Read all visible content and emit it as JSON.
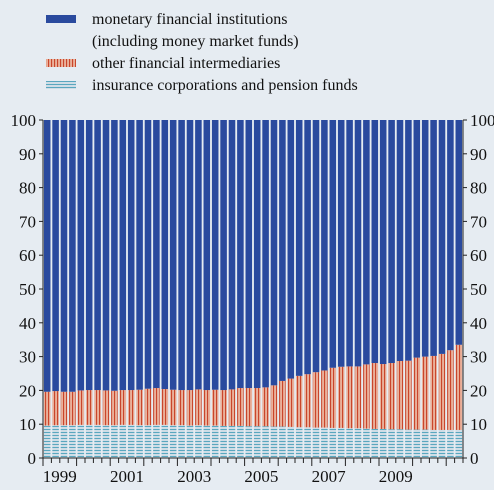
{
  "chart_data": {
    "type": "bar",
    "stacked": true,
    "percent_scale": true,
    "ylim": [
      0,
      100
    ],
    "yticks": [
      0,
      10,
      20,
      30,
      40,
      50,
      60,
      70,
      80,
      90,
      100
    ],
    "right_axis_ticks": true,
    "grid": false,
    "legend_position": "top",
    "x_start_year": 1999,
    "periods_per_year": 4,
    "x_tick_labels": [
      "1999",
      "2001",
      "2003",
      "2005",
      "2007",
      "2009"
    ],
    "x_tick_label_years": [
      1999,
      2001,
      2003,
      2005,
      2007,
      2009
    ],
    "legend": [
      {
        "key": "mfi",
        "lines": [
          "monetary financial institutions",
          "(including money market funds)"
        ]
      },
      {
        "key": "ofi",
        "lines": [
          "other financial intermediaries"
        ]
      },
      {
        "key": "icpf",
        "lines": [
          "insurance corporations and pension funds"
        ]
      }
    ],
    "series": [
      {
        "name": "insurance corporations and pension funds",
        "key": "icpf",
        "color": "#c9d9e3",
        "stripe_color": "#4a9bb5",
        "values": [
          9.6,
          9.7,
          9.7,
          9.7,
          9.8,
          9.8,
          9.8,
          9.7,
          9.7,
          9.8,
          9.8,
          9.7,
          9.7,
          9.8,
          9.8,
          9.7,
          9.7,
          9.6,
          9.7,
          9.6,
          9.6,
          9.5,
          9.5,
          9.5,
          9.4,
          9.4,
          9.4,
          9.3,
          9.3,
          9.2,
          9.1,
          9.1,
          9.0,
          9.0,
          8.9,
          8.9,
          8.8,
          8.8,
          8.7,
          8.6,
          8.6,
          8.5,
          8.5,
          8.4,
          8.4,
          8.4,
          8.3,
          8.3,
          8.3,
          8.3
        ]
      },
      {
        "name": "other financial intermediaries",
        "key": "ofi",
        "color": "#e9a890",
        "stripe_color": "#c9462c",
        "values": [
          10.0,
          10.1,
          9.9,
          9.9,
          10.2,
          10.3,
          10.3,
          10.3,
          10.2,
          10.3,
          10.3,
          10.5,
          10.8,
          10.9,
          10.6,
          10.5,
          10.4,
          10.5,
          10.6,
          10.5,
          10.6,
          10.6,
          10.8,
          11.2,
          11.3,
          11.3,
          11.5,
          12.2,
          13.5,
          14.3,
          15.2,
          15.7,
          16.4,
          16.9,
          17.8,
          18.1,
          18.3,
          18.3,
          19.0,
          19.5,
          19.2,
          19.6,
          20.2,
          20.4,
          21.3,
          21.6,
          21.9,
          22.5,
          23.6,
          25.2
        ]
      },
      {
        "name": "monetary financial institutions (including money market funds)",
        "key": "mfi",
        "color": "#2a4a9e",
        "values": [
          80.4,
          80.2,
          80.4,
          80.4,
          80.0,
          79.9,
          79.9,
          80.0,
          80.1,
          79.9,
          79.9,
          79.8,
          79.5,
          79.3,
          79.6,
          79.8,
          79.9,
          79.9,
          79.7,
          79.9,
          79.8,
          79.9,
          79.7,
          79.3,
          79.3,
          79.3,
          79.1,
          78.5,
          77.2,
          76.5,
          75.7,
          75.2,
          74.6,
          74.1,
          73.3,
          73.0,
          72.9,
          72.9,
          72.3,
          71.9,
          72.2,
          71.9,
          71.3,
          71.2,
          70.3,
          70.0,
          69.8,
          69.2,
          68.1,
          66.5
        ]
      }
    ]
  }
}
